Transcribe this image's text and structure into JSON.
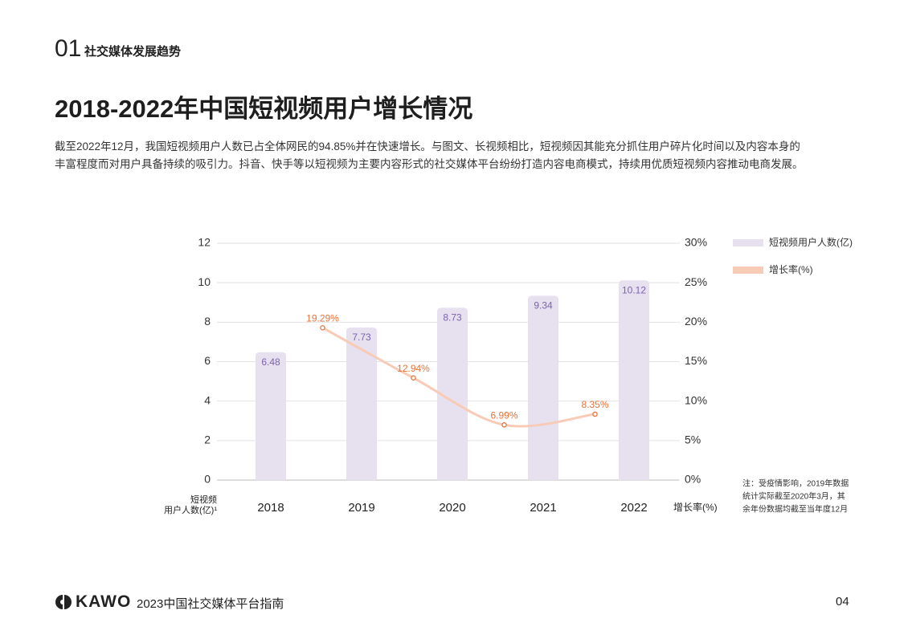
{
  "header": {
    "number": "01",
    "section": "社交媒体发展趋势",
    "title": "2018-2022年中国短视频用户增长情况",
    "paragraph": [
      "截至2022年12月，我国短视频用户人数已占全体网民的94.85%并在快速增长。与图文、长视频相比，短视频因其能充分抓住用户碎片化时间以及内容本身的",
      "丰富程度而对用户具备持续的吸引力。抖音、快手等以短视频为主要内容形式的社交媒体平台纷纷打造内容电商模式，持续用优质短视频内容推动电商发展。"
    ]
  },
  "chart_data": {
    "type": "bar-line",
    "categories": [
      "2018",
      "2019",
      "2020",
      "2021",
      "2022"
    ],
    "ylabel": [
      "短视频",
      "用户人数(亿)¹"
    ],
    "y2label": "增长率(%)",
    "ylim": [
      0,
      12
    ],
    "yticks": [
      0,
      2,
      4,
      6,
      8,
      10,
      12
    ],
    "y2lim": [
      0,
      30
    ],
    "y2ticks": [
      {
        "value": 0,
        "label": "0%"
      },
      {
        "value": 5,
        "label": "5%"
      },
      {
        "value": 10,
        "label": "10%"
      },
      {
        "value": 15,
        "label": "15%"
      },
      {
        "value": 20,
        "label": "20%"
      },
      {
        "value": 25,
        "label": "25%"
      },
      {
        "value": 30,
        "label": "30%"
      }
    ],
    "grid": true,
    "legend": "right",
    "series": [
      {
        "name": "短视频用户人数(亿)",
        "type": "bar",
        "color": "#e6e0ef",
        "label_color": "#7d62ad",
        "values": [
          6.48,
          7.73,
          8.73,
          9.34,
          10.12
        ]
      },
      {
        "name": "增长率(%)",
        "type": "line",
        "axis": "y2",
        "color": "#f8cbb6",
        "label_color": "#e4743a",
        "values": [
          null,
          19.29,
          12.94,
          6.99,
          8.35
        ],
        "value_labels": [
          null,
          "19.29%",
          "12.94%",
          "6.99%",
          "8.35%"
        ]
      }
    ],
    "note": [
      "注：受疫情影响，2019年数据",
      "统计实际截至2020年3月，其",
      "余年份数据均截至当年度12月"
    ]
  },
  "footer": {
    "brand": "KAWO",
    "title": "2023中国社交媒体平台指南",
    "page": "04"
  }
}
